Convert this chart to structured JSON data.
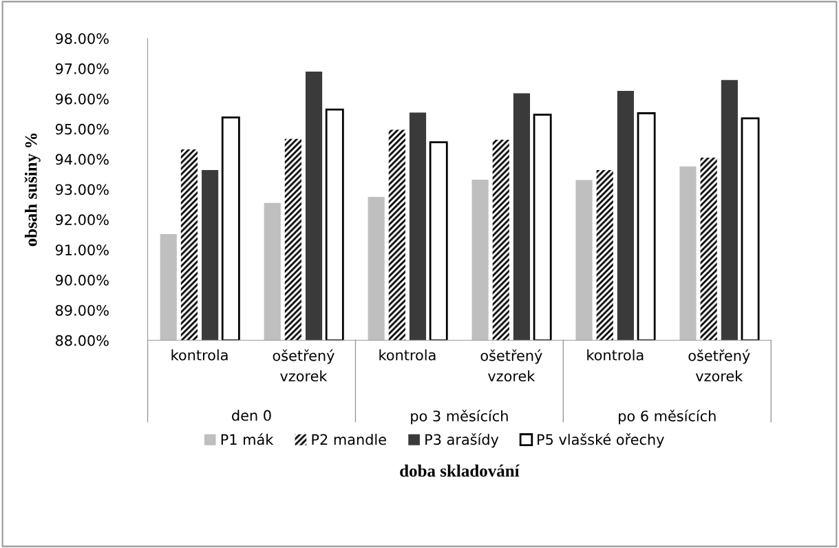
{
  "chart_data": {
    "type": "bar",
    "xlabel": "doba skladování",
    "ylabel": "obsah sušiny %",
    "categories": [
      "kontrola",
      "ošetřený\nvzorek",
      "kontrola",
      "ošetřený\nvzorek",
      "kontrola",
      "ošetřený\nvzorek"
    ],
    "annotations": [
      "den 0",
      "po 3 měsících",
      "po 6 měsících"
    ],
    "series": [
      {
        "name": "P1 mák",
        "color": "#bfbfbf",
        "values": [
          91.52,
          92.55,
          92.75,
          93.32,
          93.31,
          93.76
        ]
      },
      {
        "name": "P2 mandle",
        "color": "#000000",
        "values": [
          94.32,
          94.67,
          94.97,
          94.64,
          93.64,
          94.05
        ]
      },
      {
        "name": "P3 arašídy",
        "color": "#3a3a3a",
        "values": [
          93.64,
          96.9,
          95.54,
          96.18,
          96.26,
          96.62
        ]
      },
      {
        "name": "P5 vlašské ořechy",
        "color": "#ffffff",
        "values": [
          95.38,
          95.64,
          94.56,
          95.47,
          95.52,
          95.35
        ]
      }
    ],
    "ylim": [
      88,
      98
    ],
    "yticks": [
      {
        "value": 88,
        "label": "88.00%"
      },
      {
        "value": 89,
        "label": "89.00%"
      },
      {
        "value": 90,
        "label": "90.00%"
      },
      {
        "value": 91,
        "label": "91.00%"
      },
      {
        "value": 92,
        "label": "92.00%"
      },
      {
        "value": 93,
        "label": "93.00%"
      },
      {
        "value": 94,
        "label": "94.00%"
      },
      {
        "value": 95,
        "label": "95.00%"
      },
      {
        "value": 96,
        "label": "96.00%"
      },
      {
        "value": 97,
        "label": "97.00%"
      },
      {
        "value": 98,
        "label": "98.00%"
      }
    ],
    "legend": "bottom",
    "grid": false
  }
}
